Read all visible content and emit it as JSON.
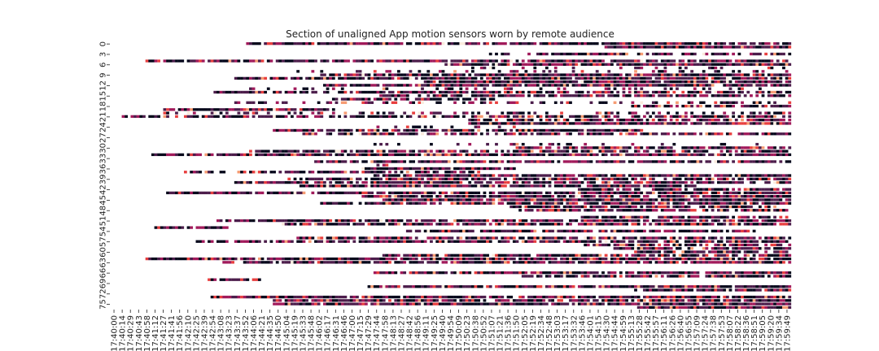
{
  "chart_data": {
    "type": "heatmap",
    "title": "Section of unaligned App motion sensors worn by remote audience",
    "xlabel": "",
    "ylabel": "",
    "y_tick_labels": [
      "0",
      "3",
      "6",
      "9",
      "12",
      "15",
      "18",
      "21",
      "24",
      "27",
      "30",
      "33",
      "36",
      "39",
      "42",
      "45",
      "48",
      "51",
      "54",
      "57",
      "60",
      "63",
      "66",
      "69",
      "72",
      "75"
    ],
    "rows": 77,
    "x_tick_labels": [
      "17:40:00",
      "17:40:14",
      "17:40:29",
      "17:40:43",
      "17:40:58",
      "17:41:12",
      "17:41:27",
      "17:41:41",
      "17:41:56",
      "17:42:10",
      "17:42:25",
      "17:42:39",
      "17:42:54",
      "17:43:08",
      "17:43:23",
      "17:43:37",
      "17:43:52",
      "17:44:06",
      "17:44:21",
      "17:44:35",
      "17:44:50",
      "17:45:04",
      "17:45:19",
      "17:45:33",
      "17:45:48",
      "17:46:02",
      "17:46:17",
      "17:46:31",
      "17:46:46",
      "17:47:00",
      "17:47:15",
      "17:47:29",
      "17:47:44",
      "17:47:58",
      "17:48:13",
      "17:48:27",
      "17:48:42",
      "17:48:56",
      "17:49:11",
      "17:49:25",
      "17:49:40",
      "17:49:54",
      "17:50:09",
      "17:50:23",
      "17:50:38",
      "17:50:52",
      "17:51:07",
      "17:51:21",
      "17:51:36",
      "17:51:50",
      "17:52:05",
      "17:52:19",
      "17:52:34",
      "17:52:48",
      "17:53:03",
      "17:53:17",
      "17:53:32",
      "17:53:46",
      "17:54:01",
      "17:54:15",
      "17:54:30",
      "17:54:44",
      "17:54:59",
      "17:55:13",
      "17:55:28",
      "17:55:42",
      "17:55:57",
      "17:56:11",
      "17:56:26",
      "17:56:40",
      "17:56:55",
      "17:57:09",
      "17:57:24",
      "17:57:38",
      "17:57:53",
      "17:58:07",
      "17:58:22",
      "17:58:36",
      "17:58:51",
      "17:59:05",
      "17:59:20",
      "17:59:34",
      "17:59:49"
    ],
    "colormap": [
      "#03051a",
      "#4c1d4b",
      "#a11a5b",
      "#e83f3f",
      "#f69c73",
      "#faebdd"
    ],
    "grid": false,
    "legend": "none"
  }
}
